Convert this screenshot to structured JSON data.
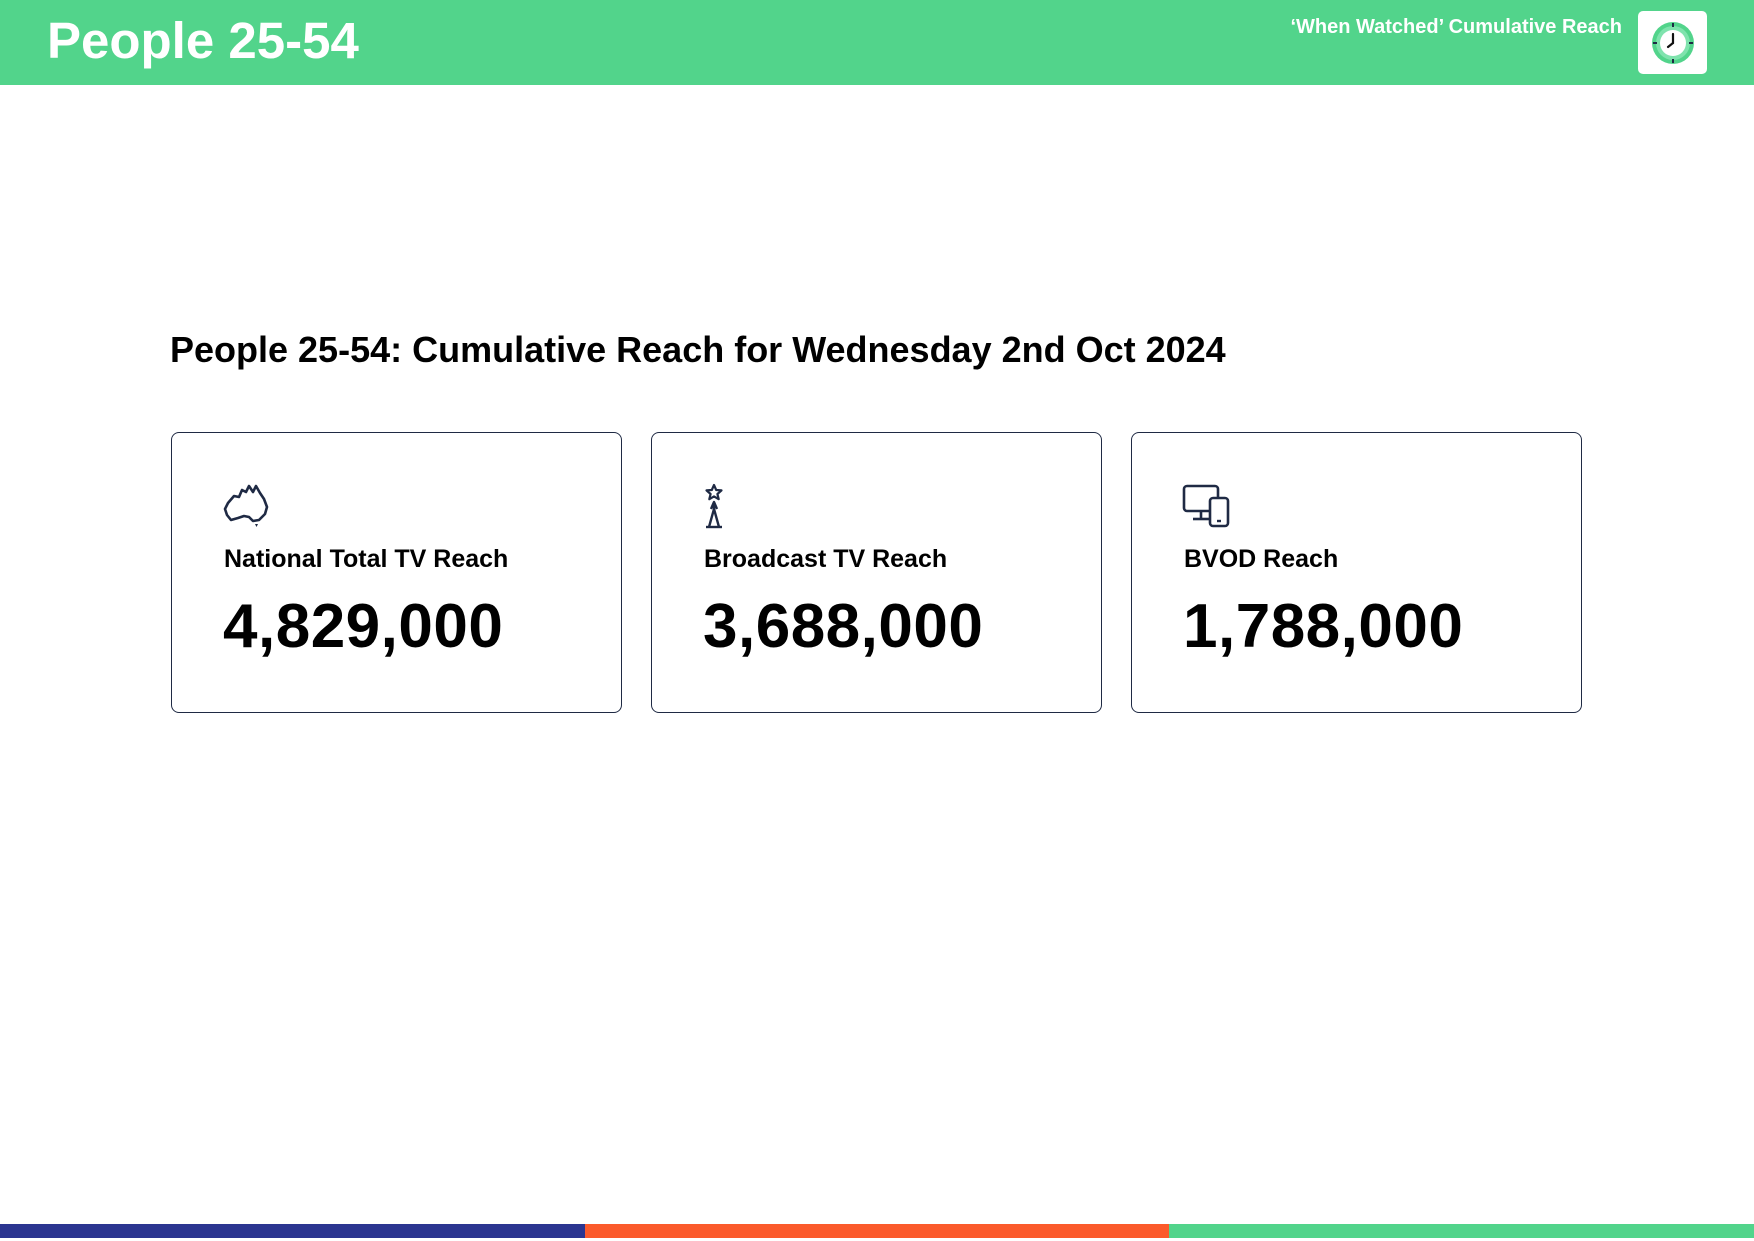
{
  "header": {
    "title": "People 25-54",
    "subtitle": "‘When Watched’ Cumulative Reach",
    "logo_icon": "clock-icon",
    "background_color": "#52d48b"
  },
  "main": {
    "title": "People 25-54: Cumulative Reach for Wednesday 2nd Oct 2024"
  },
  "cards": [
    {
      "icon": "australia-map-icon",
      "label": "National Total TV Reach",
      "value": "4,829,000"
    },
    {
      "icon": "broadcast-tower-icon",
      "label": "Broadcast TV Reach",
      "value": "3,688,000"
    },
    {
      "icon": "devices-icon",
      "label": "BVOD Reach",
      "value": "1,788,000"
    }
  ],
  "footer": {
    "colors": [
      "#2b3590",
      "#fb5a2b",
      "#52d48b"
    ]
  }
}
